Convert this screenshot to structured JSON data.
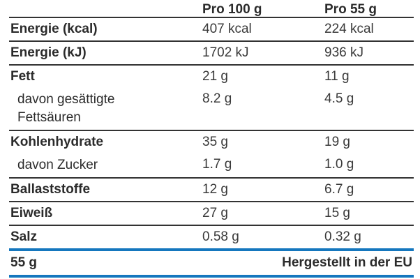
{
  "colors": {
    "accent_blue": "#1577BE",
    "rule_dark": "#333333",
    "text_dark": "#2B2B2B"
  },
  "table": {
    "columns": {
      "per100": "Pro 100 g",
      "per55": "Pro 55 g"
    },
    "rows": [
      {
        "label": "Energie (kcal)",
        "per100": "407 kcal",
        "per55": "224 kcal"
      },
      {
        "label": "Energie (kJ)",
        "per100": "1702 kJ",
        "per55": "936 kJ"
      },
      {
        "label": "Fett",
        "per100": "21 g",
        "per55": "11 g"
      },
      {
        "label": "davon gesättigte Fettsäuren",
        "per100": "8.2 g",
        "per55": "4.5 g"
      },
      {
        "label": "Kohlenhydrate",
        "per100": "35 g",
        "per55": "19 g"
      },
      {
        "label": "davon Zucker",
        "per100": "1.7 g",
        "per55": "1.0 g"
      },
      {
        "label": "Ballaststoffe",
        "per100": "12 g",
        "per55": "6.7 g"
      },
      {
        "label": "Eiweiß",
        "per100": "27 g",
        "per55": "15 g"
      },
      {
        "label": "Salz",
        "per100": "0.58 g",
        "per55": "0.32 g"
      }
    ],
    "footer": {
      "weight": "55 g",
      "origin": "Hergestellt in der EU"
    }
  }
}
